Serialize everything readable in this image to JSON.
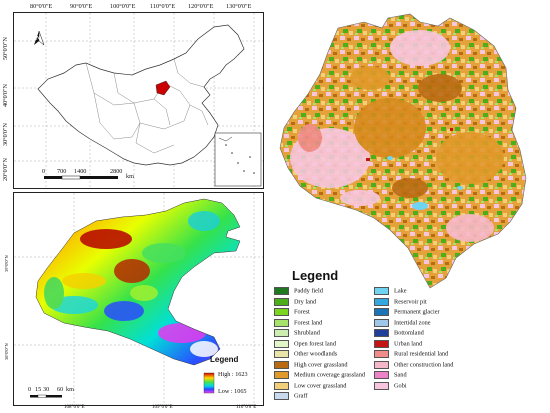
{
  "inset_map": {
    "top_lon_labels": [
      "80°0'0\"E",
      "90°0'0\"E",
      "100°0'0\"E",
      "110°0'0\"E",
      "120°0'0\"E",
      "130°0'0\"E"
    ],
    "left_lat_labels": [
      "50°0'0\"N",
      "40°0'0\"N",
      "30°0'0\"N",
      "20°0'0\"N"
    ],
    "scale_labels": [
      "0",
      "700",
      "1400",
      "2800"
    ],
    "scale_unit": "km",
    "north_arrow": "N",
    "highlight_color": "#cc0000"
  },
  "dem_map": {
    "left_lat_labels": [
      "39°0'0\"N",
      "38°0'0\"N"
    ],
    "bottom_lon_labels": [
      "108°0'0\"E",
      "109°0'0\"E",
      "110°0'0\"E"
    ],
    "legend_title": "Legend",
    "high_label": "High : 1623",
    "low_label": "Low : 1065",
    "scale_labels": [
      "0",
      "15",
      "30",
      "60"
    ],
    "scale_unit": "km"
  },
  "landuse_legend": {
    "title": "Legend",
    "left_items": [
      {
        "label": "Paddy field",
        "color": "#1f7a1f"
      },
      {
        "label": "Dry land",
        "color": "#4caf1a"
      },
      {
        "label": "Forest",
        "color": "#7bd61f"
      },
      {
        "label": "Forest land",
        "color": "#a6e36b"
      },
      {
        "label": "Shrubland",
        "color": "#cdeeb0"
      },
      {
        "label": "Open forest land",
        "color": "#e2f5c8"
      },
      {
        "label": "Other woodlands",
        "color": "#e9e4a8"
      },
      {
        "label": "High cover grassland",
        "color": "#b86b12"
      },
      {
        "label": "Medium coverage grassland",
        "color": "#e09a2a"
      },
      {
        "label": "Low cover grassland",
        "color": "#f2d07a"
      },
      {
        "label": "Graff",
        "color": "#c9d9ee"
      }
    ],
    "right_items": [
      {
        "label": "Lake",
        "color": "#6fd3f2"
      },
      {
        "label": "Reservoir pit",
        "color": "#35a7e0"
      },
      {
        "label": "Permanent glacier",
        "color": "#1b74b8"
      },
      {
        "label": "Intertidal zone",
        "color": "#9ec7ea"
      },
      {
        "label": "Bottomland",
        "color": "#1f3f9a"
      },
      {
        "label": "Urban land",
        "color": "#c41414"
      },
      {
        "label": "Rural residential land",
        "color": "#f08c8c"
      },
      {
        "label": "Other construction land",
        "color": "#f5b8c8"
      },
      {
        "label": "Sand",
        "color": "#ee82c8"
      },
      {
        "label": "Gobi",
        "color": "#f7c6de"
      }
    ]
  }
}
